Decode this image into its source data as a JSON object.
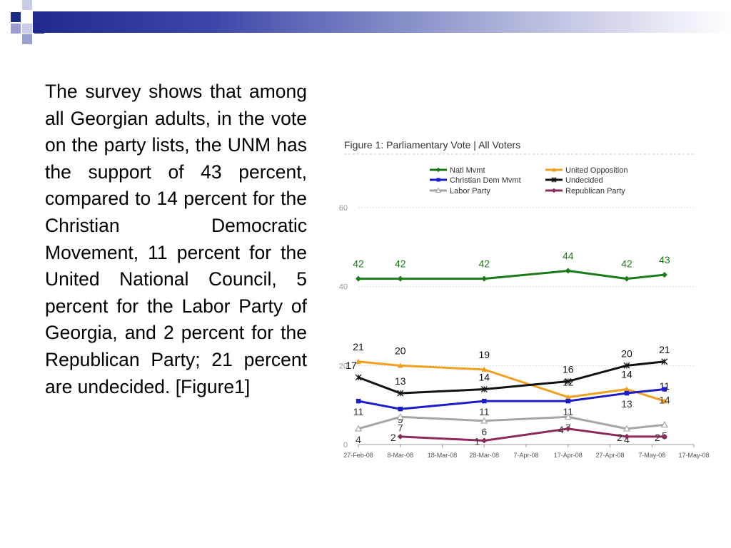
{
  "slide": {
    "body_text": "The survey shows that among all Georgian adults, in the vote on the party lists, the UNM has the support of 43 percent, compared to 14 percent for the Christian Democratic Movement, 11 percent for the United National Council, 5 percent for the Labor Party of Georgia, and 2 percent for the Republican Party; 21 percent are undecided. [Figure1]"
  },
  "chart_data": {
    "type": "line",
    "title": "Figure 1: Parliamentary Vote | All Voters",
    "x": [
      "27-Feb-08",
      "8-Mar-08",
      "18-Mar-08",
      "28-Mar-08",
      "7-Apr-08",
      "17-Apr-08",
      "27-Apr-08",
      "7-May-08",
      "17-May-08"
    ],
    "ylim": [
      0,
      60
    ],
    "yticks": [
      0,
      20,
      40,
      60
    ],
    "grid": true,
    "legend_position": "top",
    "series": [
      {
        "name": "Natl Mvmt",
        "color": "#1a7a1a",
        "marker": "diamond",
        "points": [
          [
            "27-Feb-08",
            42
          ],
          [
            "8-Mar-08",
            42
          ],
          [
            "28-Mar-08",
            42
          ],
          [
            "17-Apr-08",
            44
          ],
          [
            "1-May-08",
            42
          ],
          [
            "10-May-08",
            43
          ]
        ]
      },
      {
        "name": "United Opposition",
        "color": "#f0a020",
        "marker": "triangle",
        "points": [
          [
            "27-Feb-08",
            21
          ],
          [
            "8-Mar-08",
            20
          ],
          [
            "28-Mar-08",
            19
          ],
          [
            "17-Apr-08",
            12
          ],
          [
            "1-May-08",
            14
          ],
          [
            "10-May-08",
            11
          ]
        ]
      },
      {
        "name": "Christian Dem Mvmt",
        "color": "#1c1cc8",
        "marker": "square",
        "points": [
          [
            "27-Feb-08",
            11
          ],
          [
            "8-Mar-08",
            9
          ],
          [
            "28-Mar-08",
            11
          ],
          [
            "17-Apr-08",
            11
          ],
          [
            "1-May-08",
            13
          ],
          [
            "10-May-08",
            14
          ]
        ]
      },
      {
        "name": "Undecided",
        "color": "#111111",
        "marker": "star",
        "points": [
          [
            "27-Feb-08",
            17
          ],
          [
            "8-Mar-08",
            13
          ],
          [
            "28-Mar-08",
            14
          ],
          [
            "17-Apr-08",
            16
          ],
          [
            "1-May-08",
            20
          ],
          [
            "10-May-08",
            21
          ]
        ]
      },
      {
        "name": "Labor Party",
        "color": "#a6a6a6",
        "marker": "triangle-open",
        "points": [
          [
            "27-Feb-08",
            4
          ],
          [
            "8-Mar-08",
            7
          ],
          [
            "28-Mar-08",
            6
          ],
          [
            "17-Apr-08",
            7
          ],
          [
            "1-May-08",
            4
          ],
          [
            "10-May-08",
            5
          ]
        ]
      },
      {
        "name": "Republican Party",
        "color": "#8c2a5c",
        "marker": "diamond",
        "points": [
          [
            "8-Mar-08",
            2
          ],
          [
            "28-Mar-08",
            1
          ],
          [
            "17-Apr-08",
            4
          ],
          [
            "1-May-08",
            2
          ],
          [
            "10-May-08",
            2
          ]
        ]
      }
    ]
  }
}
